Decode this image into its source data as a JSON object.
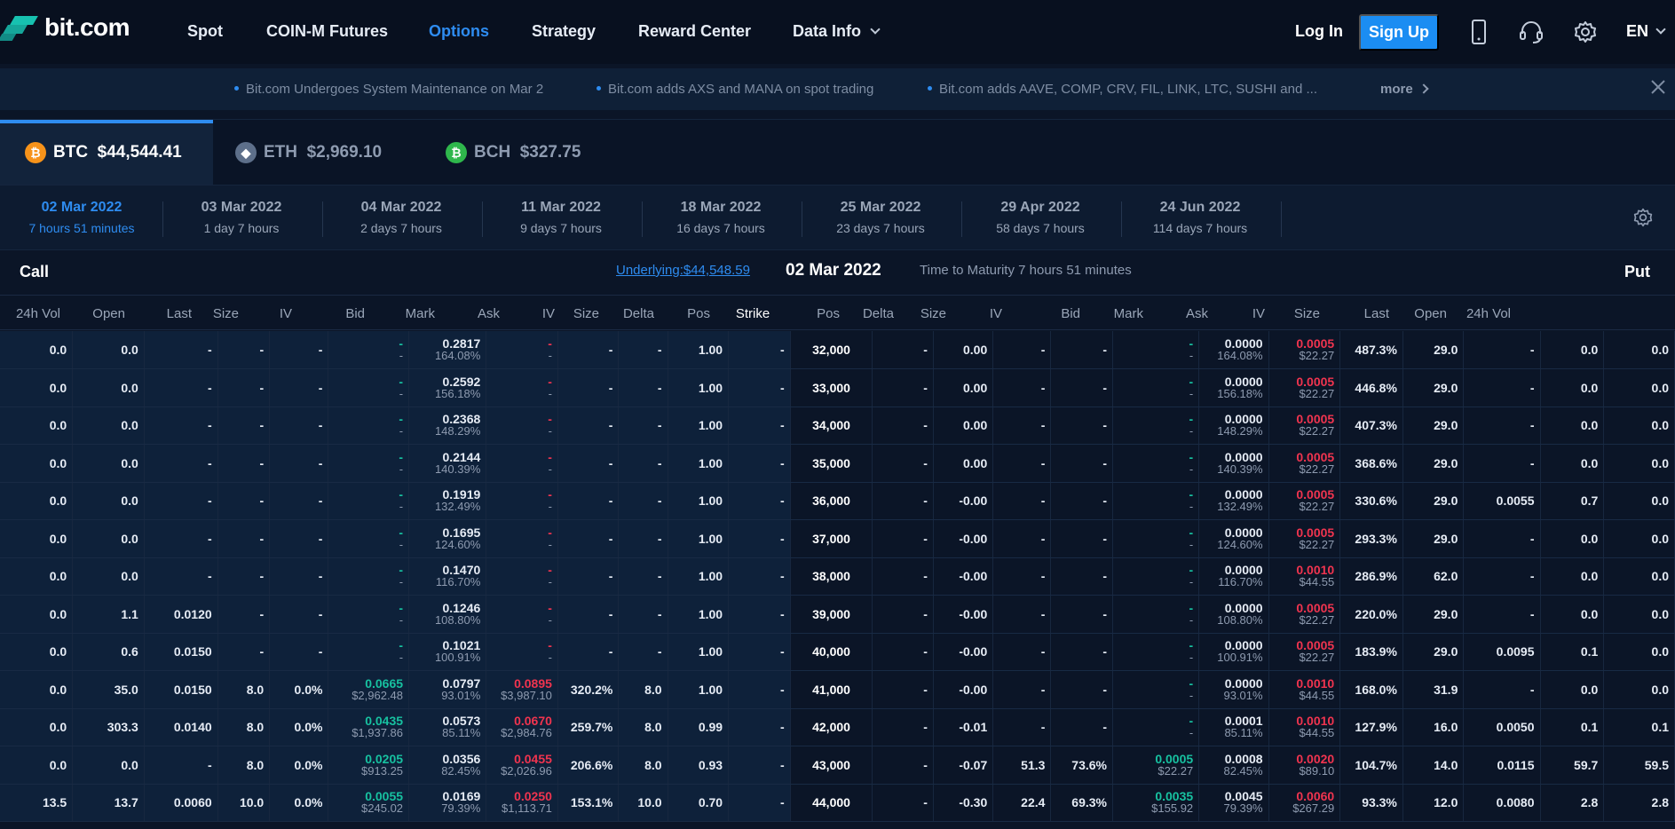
{
  "brand": {
    "name": "bit.com",
    "accent": "#17c1b0"
  },
  "nav": {
    "items": [
      "Spot",
      "COIN-M Futures",
      "Options",
      "Strategy",
      "Reward Center",
      "Data Info"
    ],
    "active": "Options",
    "login": "Log In",
    "signup": "Sign Up",
    "lang": "EN",
    "icons": [
      "mobile-icon",
      "headset-icon",
      "gear-icon"
    ]
  },
  "ticker": {
    "items": [
      "Bit.com Undergoes System Maintenance on Mar 2",
      "Bit.com adds AXS and MANA on spot trading",
      "Bit.com adds AAVE, COMP, CRV, FIL, LINK, LTC, SUSHI and ..."
    ],
    "more": "more"
  },
  "coins": [
    {
      "symbol": "BTC",
      "price": "$44,544.41",
      "icon": "₿",
      "color": "#f7931a",
      "active": true
    },
    {
      "symbol": "ETH",
      "price": "$2,969.10",
      "icon": "◆",
      "color": "#5d6f8a",
      "active": false
    },
    {
      "symbol": "BCH",
      "price": "$327.75",
      "icon": "₿",
      "color": "#2fb74c",
      "active": false
    }
  ],
  "expiries": [
    {
      "date": "02 Mar 2022",
      "remain": "7 hours 51 minutes",
      "active": true
    },
    {
      "date": "03 Mar 2022",
      "remain": "1 day 7 hours"
    },
    {
      "date": "04 Mar 2022",
      "remain": "2 days 7 hours"
    },
    {
      "date": "11 Mar 2022",
      "remain": "9 days 7 hours"
    },
    {
      "date": "18 Mar 2022",
      "remain": "16 days 7 hours"
    },
    {
      "date": "25 Mar 2022",
      "remain": "23 days 7 hours"
    },
    {
      "date": "29 Apr 2022",
      "remain": "58 days 7 hours"
    },
    {
      "date": "24 Jun 2022",
      "remain": "114 days 7 hours"
    }
  ],
  "header": {
    "call": "Call",
    "put": "Put",
    "underlying": "Underlying:$44,548.59",
    "date": "02 Mar 2022",
    "maturity": "Time to Maturity 7 hours 51 minutes"
  },
  "columns": {
    "call": [
      "24h Vol",
      "Open",
      "Last",
      "Size",
      "IV",
      "Bid",
      "Mark",
      "Ask",
      "IV",
      "Size",
      "Delta",
      "Pos"
    ],
    "strike": "Strike",
    "put": [
      "Pos",
      "Delta",
      "Size",
      "IV",
      "Bid",
      "Mark",
      "Ask",
      "IV",
      "Size",
      "Last",
      "Open",
      "24h Vol"
    ]
  },
  "rows": [
    {
      "strike": "32,000",
      "c": {
        "vol": "0.0",
        "open": "0.0",
        "last": "-",
        "bsize": "-",
        "biv": "-",
        "bid": "-",
        "bidusd": "-",
        "mark": "0.2817",
        "markiv": "164.08%",
        "ask": "-",
        "askusd": "-",
        "aiv": "-",
        "asize": "-",
        "delta": "1.00",
        "pos": "-"
      },
      "p": {
        "pos": "-",
        "delta": "0.00",
        "bsize": "-",
        "biv": "-",
        "bid": "-",
        "bidusd": "-",
        "mark": "0.0000",
        "markiv": "164.08%",
        "ask": "0.0005",
        "askusd": "$22.27",
        "aiv": "487.3%",
        "asize": "29.0",
        "last": "-",
        "open": "0.0",
        "vol": "0.0"
      }
    },
    {
      "strike": "33,000",
      "c": {
        "vol": "0.0",
        "open": "0.0",
        "last": "-",
        "bsize": "-",
        "biv": "-",
        "bid": "-",
        "bidusd": "-",
        "mark": "0.2592",
        "markiv": "156.18%",
        "ask": "-",
        "askusd": "-",
        "aiv": "-",
        "asize": "-",
        "delta": "1.00",
        "pos": "-"
      },
      "p": {
        "pos": "-",
        "delta": "0.00",
        "bsize": "-",
        "biv": "-",
        "bid": "-",
        "bidusd": "-",
        "mark": "0.0000",
        "markiv": "156.18%",
        "ask": "0.0005",
        "askusd": "$22.27",
        "aiv": "446.8%",
        "asize": "29.0",
        "last": "-",
        "open": "0.0",
        "vol": "0.0"
      }
    },
    {
      "strike": "34,000",
      "c": {
        "vol": "0.0",
        "open": "0.0",
        "last": "-",
        "bsize": "-",
        "biv": "-",
        "bid": "-",
        "bidusd": "-",
        "mark": "0.2368",
        "markiv": "148.29%",
        "ask": "-",
        "askusd": "-",
        "aiv": "-",
        "asize": "-",
        "delta": "1.00",
        "pos": "-"
      },
      "p": {
        "pos": "-",
        "delta": "0.00",
        "bsize": "-",
        "biv": "-",
        "bid": "-",
        "bidusd": "-",
        "mark": "0.0000",
        "markiv": "148.29%",
        "ask": "0.0005",
        "askusd": "$22.27",
        "aiv": "407.3%",
        "asize": "29.0",
        "last": "-",
        "open": "0.0",
        "vol": "0.0"
      }
    },
    {
      "strike": "35,000",
      "c": {
        "vol": "0.0",
        "open": "0.0",
        "last": "-",
        "bsize": "-",
        "biv": "-",
        "bid": "-",
        "bidusd": "-",
        "mark": "0.2144",
        "markiv": "140.39%",
        "ask": "-",
        "askusd": "-",
        "aiv": "-",
        "asize": "-",
        "delta": "1.00",
        "pos": "-"
      },
      "p": {
        "pos": "-",
        "delta": "0.00",
        "bsize": "-",
        "biv": "-",
        "bid": "-",
        "bidusd": "-",
        "mark": "0.0000",
        "markiv": "140.39%",
        "ask": "0.0005",
        "askusd": "$22.27",
        "aiv": "368.6%",
        "asize": "29.0",
        "last": "-",
        "open": "0.0",
        "vol": "0.0"
      }
    },
    {
      "strike": "36,000",
      "c": {
        "vol": "0.0",
        "open": "0.0",
        "last": "-",
        "bsize": "-",
        "biv": "-",
        "bid": "-",
        "bidusd": "-",
        "mark": "0.1919",
        "markiv": "132.49%",
        "ask": "-",
        "askusd": "-",
        "aiv": "-",
        "asize": "-",
        "delta": "1.00",
        "pos": "-"
      },
      "p": {
        "pos": "-",
        "delta": "-0.00",
        "bsize": "-",
        "biv": "-",
        "bid": "-",
        "bidusd": "-",
        "mark": "0.0000",
        "markiv": "132.49%",
        "ask": "0.0005",
        "askusd": "$22.27",
        "aiv": "330.6%",
        "asize": "29.0",
        "last": "0.0055",
        "open": "0.7",
        "vol": "0.0"
      }
    },
    {
      "strike": "37,000",
      "c": {
        "vol": "0.0",
        "open": "0.0",
        "last": "-",
        "bsize": "-",
        "biv": "-",
        "bid": "-",
        "bidusd": "-",
        "mark": "0.1695",
        "markiv": "124.60%",
        "ask": "-",
        "askusd": "-",
        "aiv": "-",
        "asize": "-",
        "delta": "1.00",
        "pos": "-"
      },
      "p": {
        "pos": "-",
        "delta": "-0.00",
        "bsize": "-",
        "biv": "-",
        "bid": "-",
        "bidusd": "-",
        "mark": "0.0000",
        "markiv": "124.60%",
        "ask": "0.0005",
        "askusd": "$22.27",
        "aiv": "293.3%",
        "asize": "29.0",
        "last": "-",
        "open": "0.0",
        "vol": "0.0"
      }
    },
    {
      "strike": "38,000",
      "c": {
        "vol": "0.0",
        "open": "0.0",
        "last": "-",
        "bsize": "-",
        "biv": "-",
        "bid": "-",
        "bidusd": "-",
        "mark": "0.1470",
        "markiv": "116.70%",
        "ask": "-",
        "askusd": "-",
        "aiv": "-",
        "asize": "-",
        "delta": "1.00",
        "pos": "-"
      },
      "p": {
        "pos": "-",
        "delta": "-0.00",
        "bsize": "-",
        "biv": "-",
        "bid": "-",
        "bidusd": "-",
        "mark": "0.0000",
        "markiv": "116.70%",
        "ask": "0.0010",
        "askusd": "$44.55",
        "aiv": "286.9%",
        "asize": "62.0",
        "last": "-",
        "open": "0.0",
        "vol": "0.0"
      }
    },
    {
      "strike": "39,000",
      "c": {
        "vol": "0.0",
        "open": "1.1",
        "last": "0.0120",
        "bsize": "-",
        "biv": "-",
        "bid": "-",
        "bidusd": "-",
        "mark": "0.1246",
        "markiv": "108.80%",
        "ask": "-",
        "askusd": "-",
        "aiv": "-",
        "asize": "-",
        "delta": "1.00",
        "pos": "-"
      },
      "p": {
        "pos": "-",
        "delta": "-0.00",
        "bsize": "-",
        "biv": "-",
        "bid": "-",
        "bidusd": "-",
        "mark": "0.0000",
        "markiv": "108.80%",
        "ask": "0.0005",
        "askusd": "$22.27",
        "aiv": "220.0%",
        "asize": "29.0",
        "last": "-",
        "open": "0.0",
        "vol": "0.0"
      }
    },
    {
      "strike": "40,000",
      "c": {
        "vol": "0.0",
        "open": "0.6",
        "last": "0.0150",
        "bsize": "-",
        "biv": "-",
        "bid": "-",
        "bidusd": "-",
        "mark": "0.1021",
        "markiv": "100.91%",
        "ask": "-",
        "askusd": "-",
        "aiv": "-",
        "asize": "-",
        "delta": "1.00",
        "pos": "-"
      },
      "p": {
        "pos": "-",
        "delta": "-0.00",
        "bsize": "-",
        "biv": "-",
        "bid": "-",
        "bidusd": "-",
        "mark": "0.0000",
        "markiv": "100.91%",
        "ask": "0.0005",
        "askusd": "$22.27",
        "aiv": "183.9%",
        "asize": "29.0",
        "last": "0.0095",
        "open": "0.1",
        "vol": "0.0"
      }
    },
    {
      "strike": "41,000",
      "c": {
        "vol": "0.0",
        "open": "35.0",
        "last": "0.0150",
        "bsize": "8.0",
        "biv": "0.0%",
        "bid": "0.0665",
        "bidusd": "$2,962.48",
        "mark": "0.0797",
        "markiv": "93.01%",
        "ask": "0.0895",
        "askusd": "$3,987.10",
        "aiv": "320.2%",
        "asize": "8.0",
        "delta": "1.00",
        "pos": "-"
      },
      "p": {
        "pos": "-",
        "delta": "-0.00",
        "bsize": "-",
        "biv": "-",
        "bid": "-",
        "bidusd": "-",
        "mark": "0.0000",
        "markiv": "93.01%",
        "ask": "0.0010",
        "askusd": "$44.55",
        "aiv": "168.0%",
        "asize": "31.9",
        "last": "-",
        "open": "0.0",
        "vol": "0.0"
      }
    },
    {
      "strike": "42,000",
      "c": {
        "vol": "0.0",
        "open": "303.3",
        "last": "0.0140",
        "bsize": "8.0",
        "biv": "0.0%",
        "bid": "0.0435",
        "bidusd": "$1,937.86",
        "mark": "0.0573",
        "markiv": "85.11%",
        "ask": "0.0670",
        "askusd": "$2,984.76",
        "aiv": "259.7%",
        "asize": "8.0",
        "delta": "0.99",
        "pos": "-"
      },
      "p": {
        "pos": "-",
        "delta": "-0.01",
        "bsize": "-",
        "biv": "-",
        "bid": "-",
        "bidusd": "-",
        "mark": "0.0001",
        "markiv": "85.11%",
        "ask": "0.0010",
        "askusd": "$44.55",
        "aiv": "127.9%",
        "asize": "16.0",
        "last": "0.0050",
        "open": "0.1",
        "vol": "0.1"
      }
    },
    {
      "strike": "43,000",
      "c": {
        "vol": "0.0",
        "open": "0.0",
        "last": "-",
        "bsize": "8.0",
        "biv": "0.0%",
        "bid": "0.0205",
        "bidusd": "$913.25",
        "mark": "0.0356",
        "markiv": "82.45%",
        "ask": "0.0455",
        "askusd": "$2,026.96",
        "aiv": "206.6%",
        "asize": "8.0",
        "delta": "0.93",
        "pos": "-"
      },
      "p": {
        "pos": "-",
        "delta": "-0.07",
        "bsize": "51.3",
        "biv": "73.6%",
        "bid": "0.0005",
        "bidusd": "$22.27",
        "mark": "0.0008",
        "markiv": "82.45%",
        "ask": "0.0020",
        "askusd": "$89.10",
        "aiv": "104.7%",
        "asize": "14.0",
        "last": "0.0115",
        "open": "59.7",
        "vol": "59.5"
      }
    },
    {
      "strike": "44,000",
      "c": {
        "vol": "13.5",
        "open": "13.7",
        "last": "0.0060",
        "bsize": "10.0",
        "biv": "0.0%",
        "bid": "0.0055",
        "bidusd": "$245.02",
        "mark": "0.0169",
        "markiv": "79.39%",
        "ask": "0.0250",
        "askusd": "$1,113.71",
        "aiv": "153.1%",
        "asize": "10.0",
        "delta": "0.70",
        "pos": "-"
      },
      "p": {
        "pos": "-",
        "delta": "-0.30",
        "bsize": "22.4",
        "biv": "69.3%",
        "bid": "0.0035",
        "bidusd": "$155.92",
        "mark": "0.0045",
        "markiv": "79.39%",
        "ask": "0.0060",
        "askusd": "$267.29",
        "aiv": "93.3%",
        "asize": "12.0",
        "last": "0.0080",
        "open": "2.8",
        "vol": "2.8"
      }
    }
  ]
}
